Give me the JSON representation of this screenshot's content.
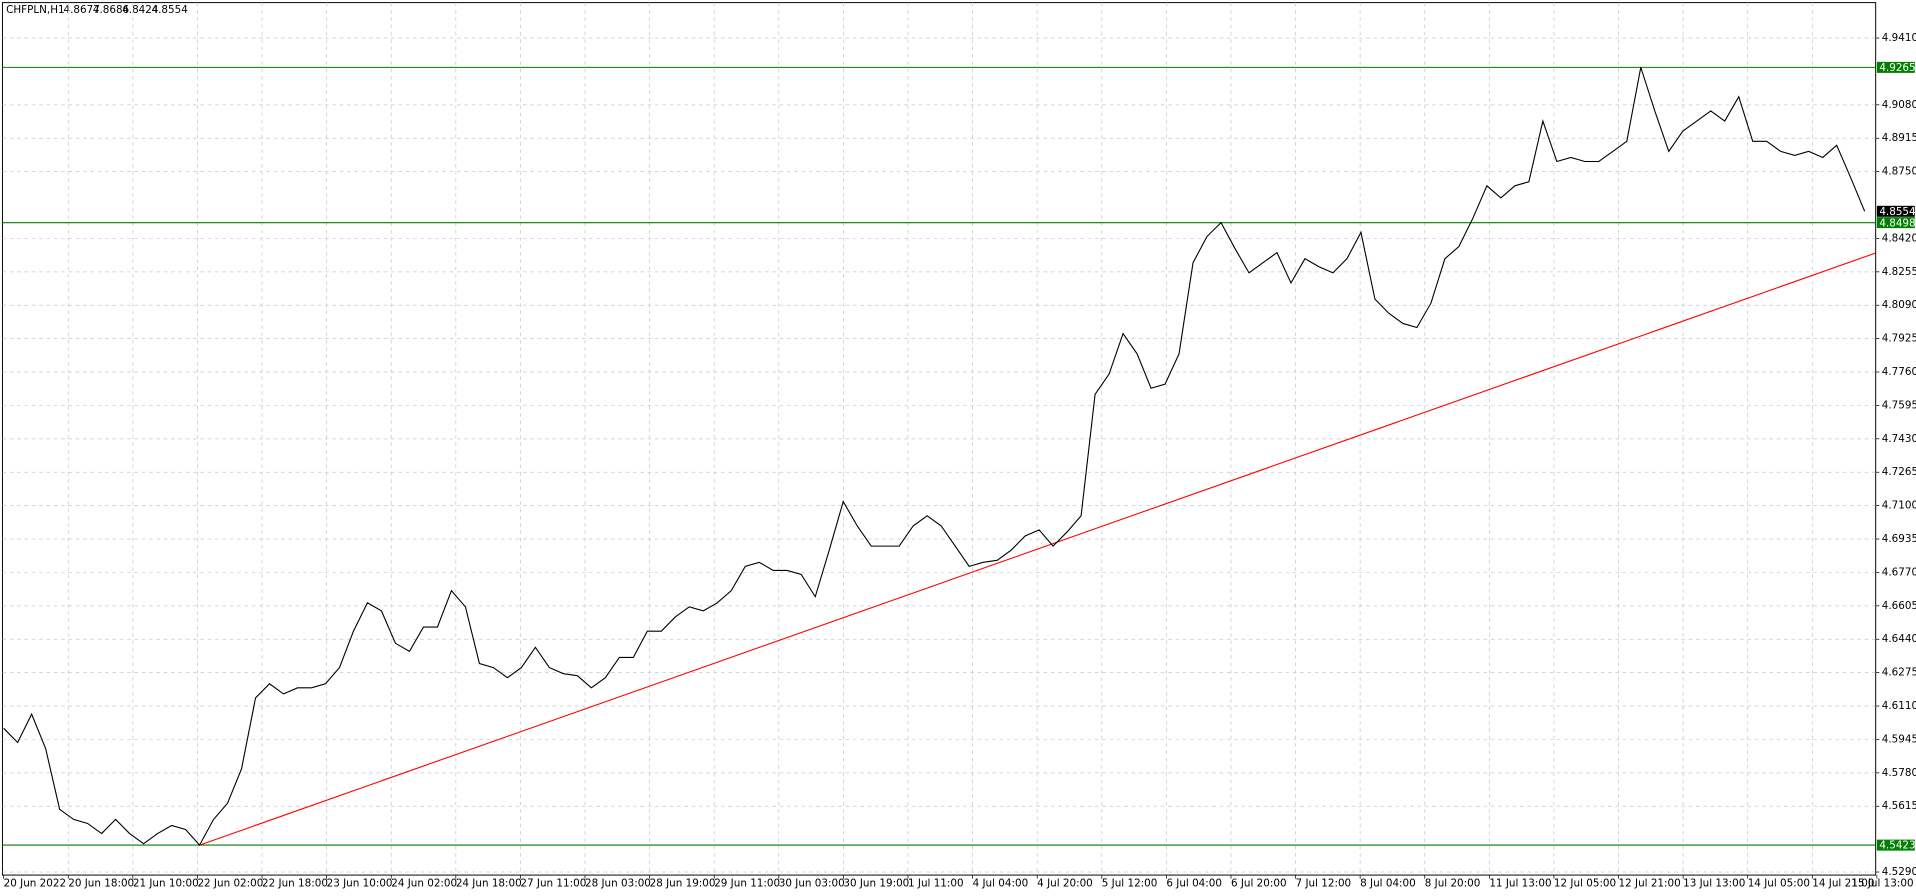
{
  "chart_data": {
    "type": "line",
    "title": "CHFPLN,H1",
    "ohlc": [
      4.8677,
      4.8686,
      4.8424,
      4.8554
    ],
    "color": "#000000",
    "grid": true,
    "ylim": [
      4.5275,
      4.9585
    ],
    "yticks": [
      {
        "value": 4.529,
        "label": "4.5290"
      },
      {
        "value": 4.5615,
        "label": "4.5615"
      },
      {
        "value": 4.578,
        "label": "4.5780"
      },
      {
        "value": 4.5945,
        "label": "4.5945"
      },
      {
        "value": 4.611,
        "label": "4.6110"
      },
      {
        "value": 4.6275,
        "label": "4.6275"
      },
      {
        "value": 4.644,
        "label": "4.6440"
      },
      {
        "value": 4.6605,
        "label": "4.6605"
      },
      {
        "value": 4.677,
        "label": "4.6770"
      },
      {
        "value": 4.6935,
        "label": "4.6935"
      },
      {
        "value": 4.71,
        "label": "4.7100"
      },
      {
        "value": 4.7265,
        "label": "4.7265"
      },
      {
        "value": 4.743,
        "label": "4.7430"
      },
      {
        "value": 4.7595,
        "label": "4.7595"
      },
      {
        "value": 4.776,
        "label": "4.7760"
      },
      {
        "value": 4.7925,
        "label": "4.7925"
      },
      {
        "value": 4.809,
        "label": "4.8090"
      },
      {
        "value": 4.8255,
        "label": "4.8255"
      },
      {
        "value": 4.842,
        "label": "4.8420"
      },
      {
        "value": 4.875,
        "label": "4.8750"
      },
      {
        "value": 4.8915,
        "label": "4.8915"
      },
      {
        "value": 4.908,
        "label": "4.9080"
      },
      {
        "value": 4.941,
        "label": "4.9410"
      }
    ],
    "x_labels": [
      "20 Jun 2022",
      "20 Jun 18:00",
      "21 Jun 10:00",
      "22 Jun 02:00",
      "22 Jun 18:00",
      "23 Jun 10:00",
      "24 Jun 02:00",
      "24 Jun 18:00",
      "27 Jun 11:00",
      "28 Jun 03:00",
      "28 Jun 19:00",
      "29 Jun 11:00",
      "30 Jun 03:00",
      "30 Jun 19:00",
      "1 Jul 11:00",
      "4 Jul 04:00",
      "4 Jul 20:00",
      "5 Jul 12:00",
      "6 Jul 04:00",
      "6 Jul 20:00",
      "7 Jul 12:00",
      "8 Jul 04:00",
      "8 Jul 20:00",
      "11 Jul 13:00",
      "12 Jul 05:00",
      "12 Jul 21:00",
      "13 Jul 13:00",
      "14 Jul 05:00",
      "14 Jul 21:00",
      "15 Jul 13:00"
    ],
    "values": [
      4.6,
      4.593,
      4.607,
      4.59,
      4.56,
      4.555,
      4.553,
      4.548,
      4.555,
      4.548,
      4.543,
      4.548,
      4.552,
      4.55,
      4.5423,
      4.555,
      4.563,
      4.58,
      4.615,
      4.622,
      4.617,
      4.62,
      4.62,
      4.622,
      4.63,
      4.648,
      4.662,
      4.658,
      4.642,
      4.638,
      4.65,
      4.65,
      4.668,
      4.66,
      4.632,
      4.63,
      4.625,
      4.63,
      4.64,
      4.63,
      4.627,
      4.626,
      4.62,
      4.625,
      4.635,
      4.635,
      4.648,
      4.648,
      4.655,
      4.66,
      4.658,
      4.662,
      4.668,
      4.68,
      4.682,
      4.678,
      4.678,
      4.676,
      4.665,
      4.688,
      4.712,
      4.7,
      4.69,
      4.69,
      4.69,
      4.7,
      4.705,
      4.7,
      4.69,
      4.68,
      4.682,
      4.683,
      4.688,
      4.695,
      4.698,
      4.69,
      4.697,
      4.705,
      4.765,
      4.775,
      4.795,
      4.785,
      4.768,
      4.77,
      4.785,
      4.83,
      4.843,
      4.8498,
      4.837,
      4.825,
      4.83,
      4.835,
      4.82,
      4.832,
      4.828,
      4.825,
      4.832,
      4.845,
      4.812,
      4.805,
      4.8,
      4.798,
      4.81,
      4.832,
      4.838,
      4.852,
      4.868,
      4.862,
      4.868,
      4.87,
      4.9,
      4.88,
      4.882,
      4.88,
      4.88,
      4.885,
      4.89,
      4.9265,
      4.905,
      4.885,
      4.895,
      4.9,
      4.905,
      4.9,
      4.912,
      4.89,
      4.89,
      4.885,
      4.883,
      4.885,
      4.882,
      4.888,
      4.872,
      4.8554
    ],
    "levels": [
      4.9265,
      4.8498,
      4.5423
    ],
    "level_color": "#008000",
    "current_price": 4.8554,
    "trendline": {
      "color": "#ff0000",
      "start": 4.5423,
      "end": 4.8348
    }
  }
}
